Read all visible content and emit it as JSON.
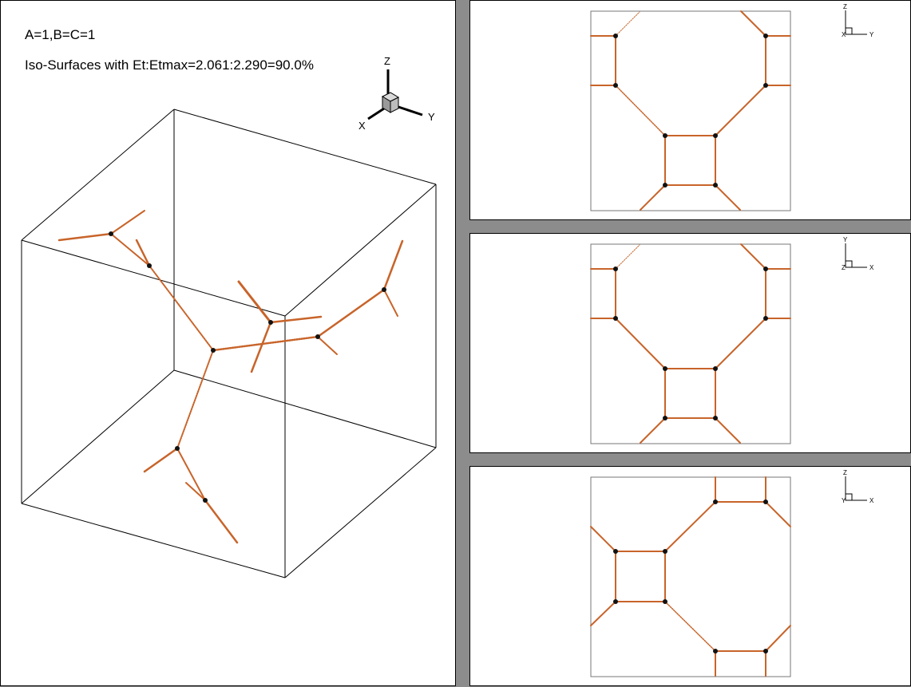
{
  "main": {
    "title_line1": "A=1,B=C=1",
    "title_line2": "Iso-Surfaces with Et:Etmax=2.061:2.290=90.0%",
    "axes": {
      "x": "X",
      "y": "Y",
      "z": "Z"
    }
  },
  "views": [
    {
      "name": "view-top",
      "axes": {
        "up": "Z",
        "right": "Y",
        "origin": "X"
      }
    },
    {
      "name": "view-mid",
      "axes": {
        "up": "Y",
        "right": "X",
        "origin": "Z"
      }
    },
    {
      "name": "view-bot",
      "axes": {
        "up": "Z",
        "right": "X",
        "origin": "Y"
      }
    }
  ],
  "colors": {
    "surface": "#c8642a",
    "node": "#111111",
    "frame": "#000000"
  }
}
